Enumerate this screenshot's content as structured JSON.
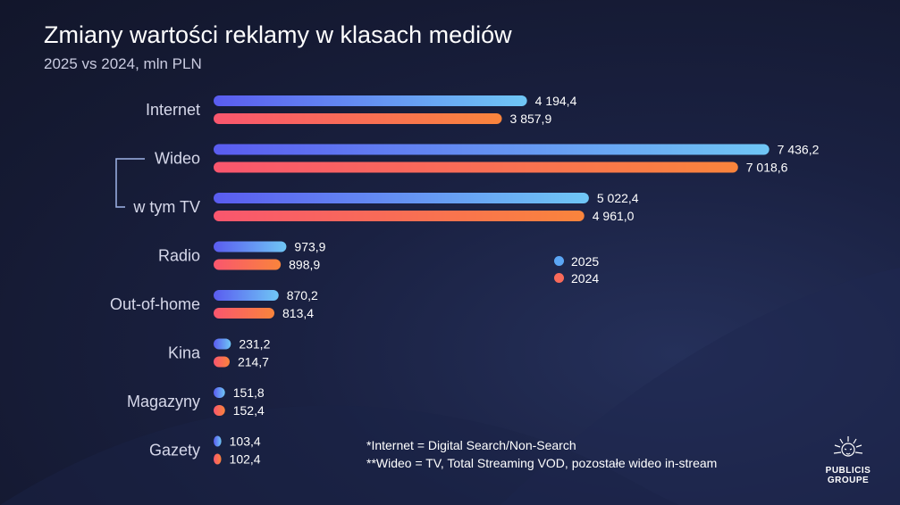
{
  "title": "Zmiany wartości reklamy w klasach mediów",
  "subtitle": "2025 vs 2024, mln PLN",
  "colors": {
    "background": "#171c38",
    "series_2025_start": "#5a5cf0",
    "series_2025_end": "#6fc6f5",
    "series_2024_start": "#f9566e",
    "series_2024_end": "#f9843c",
    "legend_2025": "#5ba6f5",
    "legend_2024": "#f96a5a"
  },
  "legend": [
    {
      "label": "2025",
      "color": "#5ba6f5"
    },
    {
      "label": "2024",
      "color": "#f96a5a"
    }
  ],
  "footnotes": [
    "*Internet = Digital Search/Non-Search",
    "**Wideo = TV, Total Streaming VOD, pozostałe wideo in-stream"
  ],
  "logo": {
    "line1": "PUBLICIS",
    "line2": "GROUPE",
    "icon": "lion-head-icon"
  },
  "chart_data": {
    "type": "bar",
    "orientation": "horizontal",
    "categories": [
      "Internet",
      "Wideo",
      "w tym TV",
      "Radio",
      "Out-of-home",
      "Kina",
      "Magazyny",
      "Gazety"
    ],
    "series": [
      {
        "name": "2025",
        "values": [
          4194.4,
          7436.2,
          5022.4,
          973.9,
          870.2,
          231.2,
          151.8,
          103.4
        ],
        "labels": [
          "4 194,4",
          "7 436,2",
          "5 022,4",
          "973,9",
          "870,2",
          "231,2",
          "151,8",
          "103,4"
        ]
      },
      {
        "name": "2024",
        "values": [
          3857.9,
          7018.6,
          4961.0,
          898.9,
          813.4,
          214.7,
          152.4,
          102.4
        ],
        "labels": [
          "3 857,9",
          "7 018,6",
          "4 961,0",
          "898,9",
          "813,4",
          "214,7",
          "152,4",
          "102,4"
        ]
      }
    ],
    "title": "Zmiany wartości reklamy w klasach mediów",
    "xlabel": "",
    "ylabel": "",
    "grid": false,
    "legend_position": "right-middle"
  }
}
